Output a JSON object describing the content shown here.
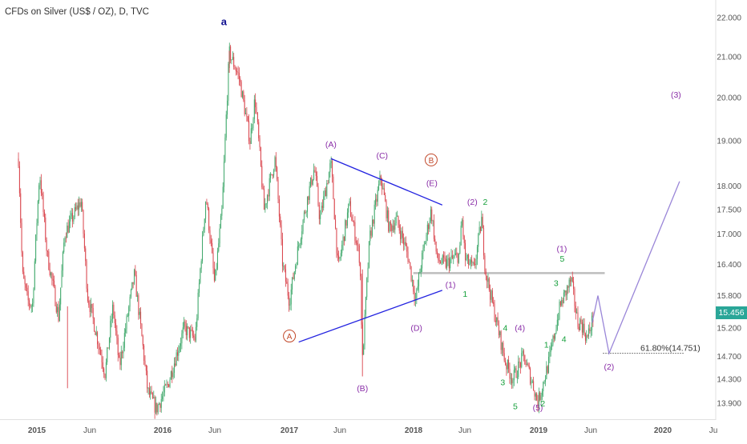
{
  "header": {
    "title": "CFDs on Silver (US$ / OZ), D, TVC"
  },
  "last_price": "15.456",
  "colors": {
    "up": "#3fa86b",
    "down": "#d9434b",
    "trendline": "#2323e0",
    "projection": "#9a86d8",
    "wave_purple": "#8a2ea8",
    "wave_green": "#17a03c",
    "wave_orange": "#c24a2c",
    "wave_navy": "#101090",
    "level": "#bdbdbd",
    "badge": "#2aa698"
  },
  "chart_data": {
    "type": "candlestick",
    "title": "CFDs on Silver (US$ / OZ), D, TVC",
    "xlabel": "",
    "ylabel": "",
    "ylim": [
      13.75,
      22.1
    ],
    "y_scale": "log",
    "y_ticks": [
      "13.900",
      "14.300",
      "14.700",
      "15.200",
      "15.800",
      "16.400",
      "17.000",
      "17.500",
      "18.000",
      "19.000",
      "20.000",
      "21.000",
      "22.000"
    ],
    "x_ticks": [
      "2015",
      "Jun",
      "2016",
      "Jun",
      "2017",
      "Jun",
      "2018",
      "Jun",
      "2019",
      "Jun",
      "2020",
      "Ju"
    ],
    "price_path": [
      [
        "2014-11-24",
        18.6
      ],
      [
        "2014-12-05",
        16.2
      ],
      [
        "2014-12-20",
        15.7
      ],
      [
        "2015-01-02",
        15.6
      ],
      [
        "2015-01-22",
        18.3
      ],
      [
        "2015-02-12",
        16.6
      ],
      [
        "2015-03-16",
        15.4
      ],
      [
        "2015-04-02",
        17.0
      ],
      [
        "2015-05-18",
        17.7
      ],
      [
        "2015-06-05",
        15.8
      ],
      [
        "2015-07-24",
        14.4
      ],
      [
        "2015-08-15",
        15.6
      ],
      [
        "2015-09-02",
        14.5
      ],
      [
        "2015-10-14",
        16.2
      ],
      [
        "2015-11-20",
        14.1
      ],
      [
        "2015-12-14",
        13.8
      ],
      [
        "2016-01-15",
        14.2
      ],
      [
        "2016-03-01",
        15.2
      ],
      [
        "2016-04-01",
        15.0
      ],
      [
        "2016-05-01",
        17.8
      ],
      [
        "2016-05-25",
        16.0
      ],
      [
        "2016-06-15",
        17.5
      ],
      [
        "2016-07-05",
        21.1
      ],
      [
        "2016-08-01",
        20.5
      ],
      [
        "2016-09-01",
        19.0
      ],
      [
        "2016-09-15",
        20.0
      ],
      [
        "2016-10-10",
        17.5
      ],
      [
        "2016-11-10",
        18.6
      ],
      [
        "2016-12-01",
        16.4
      ],
      [
        "2016-12-20",
        15.7
      ],
      [
        "2017-01-20",
        17.0
      ],
      [
        "2017-02-10",
        17.8
      ],
      [
        "2017-02-28",
        18.4
      ],
      [
        "2017-03-15",
        17.3
      ],
      [
        "2017-04-15",
        18.5
      ],
      [
        "2017-05-05",
        16.3
      ],
      [
        "2017-06-05",
        17.6
      ],
      [
        "2017-07-05",
        16.5
      ],
      [
        "2017-07-12",
        14.6
      ],
      [
        "2017-08-01",
        16.9
      ],
      [
        "2017-09-01",
        18.2
      ],
      [
        "2017-09-25",
        17.1
      ],
      [
        "2017-10-15",
        17.3
      ],
      [
        "2017-11-15",
        16.6
      ],
      [
        "2017-12-08",
        15.7
      ],
      [
        "2017-12-20",
        16.3
      ],
      [
        "2018-01-20",
        17.5
      ],
      [
        "2018-02-05",
        16.5
      ],
      [
        "2018-03-01",
        16.4
      ],
      [
        "2018-04-10",
        16.6
      ],
      [
        "2018-04-15",
        17.4
      ],
      [
        "2018-04-25",
        16.5
      ],
      [
        "2018-05-20",
        16.3
      ],
      [
        "2018-06-10",
        17.3
      ],
      [
        "2018-06-20",
        16.3
      ],
      [
        "2018-07-15",
        15.5
      ],
      [
        "2018-08-15",
        14.6
      ],
      [
        "2018-09-05",
        14.3
      ],
      [
        "2018-10-05",
        14.7
      ],
      [
        "2018-11-01",
        14.2
      ],
      [
        "2018-11-14",
        13.9
      ],
      [
        "2018-12-15",
        14.6
      ],
      [
        "2019-01-15",
        15.6
      ],
      [
        "2019-02-15",
        16.1
      ],
      [
        "2019-03-05",
        15.3
      ],
      [
        "2019-03-15",
        15.3
      ],
      [
        "2019-04-01",
        15.0
      ],
      [
        "2019-04-20",
        15.46
      ]
    ],
    "trendlines": [
      {
        "name": "upper",
        "points": [
          [
            "2017-04-15",
            18.6
          ],
          [
            "2018-02-20",
            17.6
          ]
        ]
      },
      {
        "name": "lower",
        "points": [
          [
            "2017-01-15",
            14.95
          ],
          [
            "2018-02-20",
            15.9
          ]
        ]
      }
    ],
    "horizontal_levels": [
      {
        "start": "2017-12-01",
        "end": "2019-05-20",
        "value": 16.23
      }
    ],
    "fib_level": {
      "text": "61.80%(14.751)",
      "value": 14.751,
      "start": "2019-05-15",
      "end": "2019-12-31"
    },
    "projection_path": [
      [
        "2019-04-15",
        15.3
      ],
      [
        "2019-05-01",
        15.8
      ],
      [
        "2019-06-01",
        14.75
      ],
      [
        "2019-12-15",
        18.1
      ]
    ],
    "wave_labels": [
      {
        "text": "a",
        "x": "2016-06-20",
        "y": 21.8,
        "color": "navy",
        "circled": false
      },
      {
        "text": "(A)",
        "x": "2017-04-15",
        "y": 18.85,
        "color": "purple",
        "circled": false
      },
      {
        "text": "(C)",
        "x": "2017-09-05",
        "y": 18.6,
        "color": "purple",
        "circled": false
      },
      {
        "text": "B",
        "x": "2018-01-20",
        "y": 18.5,
        "color": "orange",
        "circled": true
      },
      {
        "text": "(E)",
        "x": "2018-01-22",
        "y": 18.0,
        "color": "purple",
        "circled": false
      },
      {
        "text": "(2)",
        "x": "2018-05-15",
        "y": 17.6,
        "color": "purple",
        "circled": false
      },
      {
        "text": "2",
        "x": "2018-06-20",
        "y": 17.6,
        "color": "green",
        "circled": false
      },
      {
        "text": "A",
        "x": "2016-12-20",
        "y": 15.0,
        "color": "orange",
        "circled": true
      },
      {
        "text": "(B)",
        "x": "2017-07-12",
        "y": 14.1,
        "color": "purple",
        "circled": false
      },
      {
        "text": "(D)",
        "x": "2017-12-10",
        "y": 15.15,
        "color": "purple",
        "circled": false
      },
      {
        "text": "(1)",
        "x": "2018-03-15",
        "y": 15.95,
        "color": "purple",
        "circled": false
      },
      {
        "text": "1",
        "x": "2018-04-25",
        "y": 15.78,
        "color": "green",
        "circled": false
      },
      {
        "text": "4",
        "x": "2018-08-15",
        "y": 15.15,
        "color": "green",
        "circled": false
      },
      {
        "text": "(4)",
        "x": "2018-09-25",
        "y": 15.15,
        "color": "purple",
        "circled": false
      },
      {
        "text": "3",
        "x": "2018-08-08",
        "y": 14.2,
        "color": "green",
        "circled": false
      },
      {
        "text": "5",
        "x": "2018-09-12",
        "y": 13.8,
        "color": "green",
        "circled": false
      },
      {
        "text": "(5)",
        "x": "2018-11-14",
        "y": 13.78,
        "color": "purple",
        "circled": false
      },
      {
        "text": "2",
        "x": "2018-11-28",
        "y": 13.85,
        "color": "green",
        "circled": false
      },
      {
        "text": "1",
        "x": "2018-12-08",
        "y": 14.85,
        "color": "green",
        "circled": false
      },
      {
        "text": "4",
        "x": "2019-01-26",
        "y": 14.95,
        "color": "green",
        "circled": false
      },
      {
        "text": "3",
        "x": "2019-01-04",
        "y": 15.98,
        "color": "green",
        "circled": false
      },
      {
        "text": "(1)",
        "x": "2019-01-20",
        "y": 16.65,
        "color": "purple",
        "circled": false
      },
      {
        "text": "5",
        "x": "2019-01-21",
        "y": 16.45,
        "color": "green",
        "circled": false
      },
      {
        "text": "(2)",
        "x": "2019-06-01",
        "y": 14.47,
        "color": "purple",
        "circled": false
      },
      {
        "text": "(3)",
        "x": "2019-12-05",
        "y": 20.0,
        "color": "purple",
        "circled": false
      }
    ]
  }
}
